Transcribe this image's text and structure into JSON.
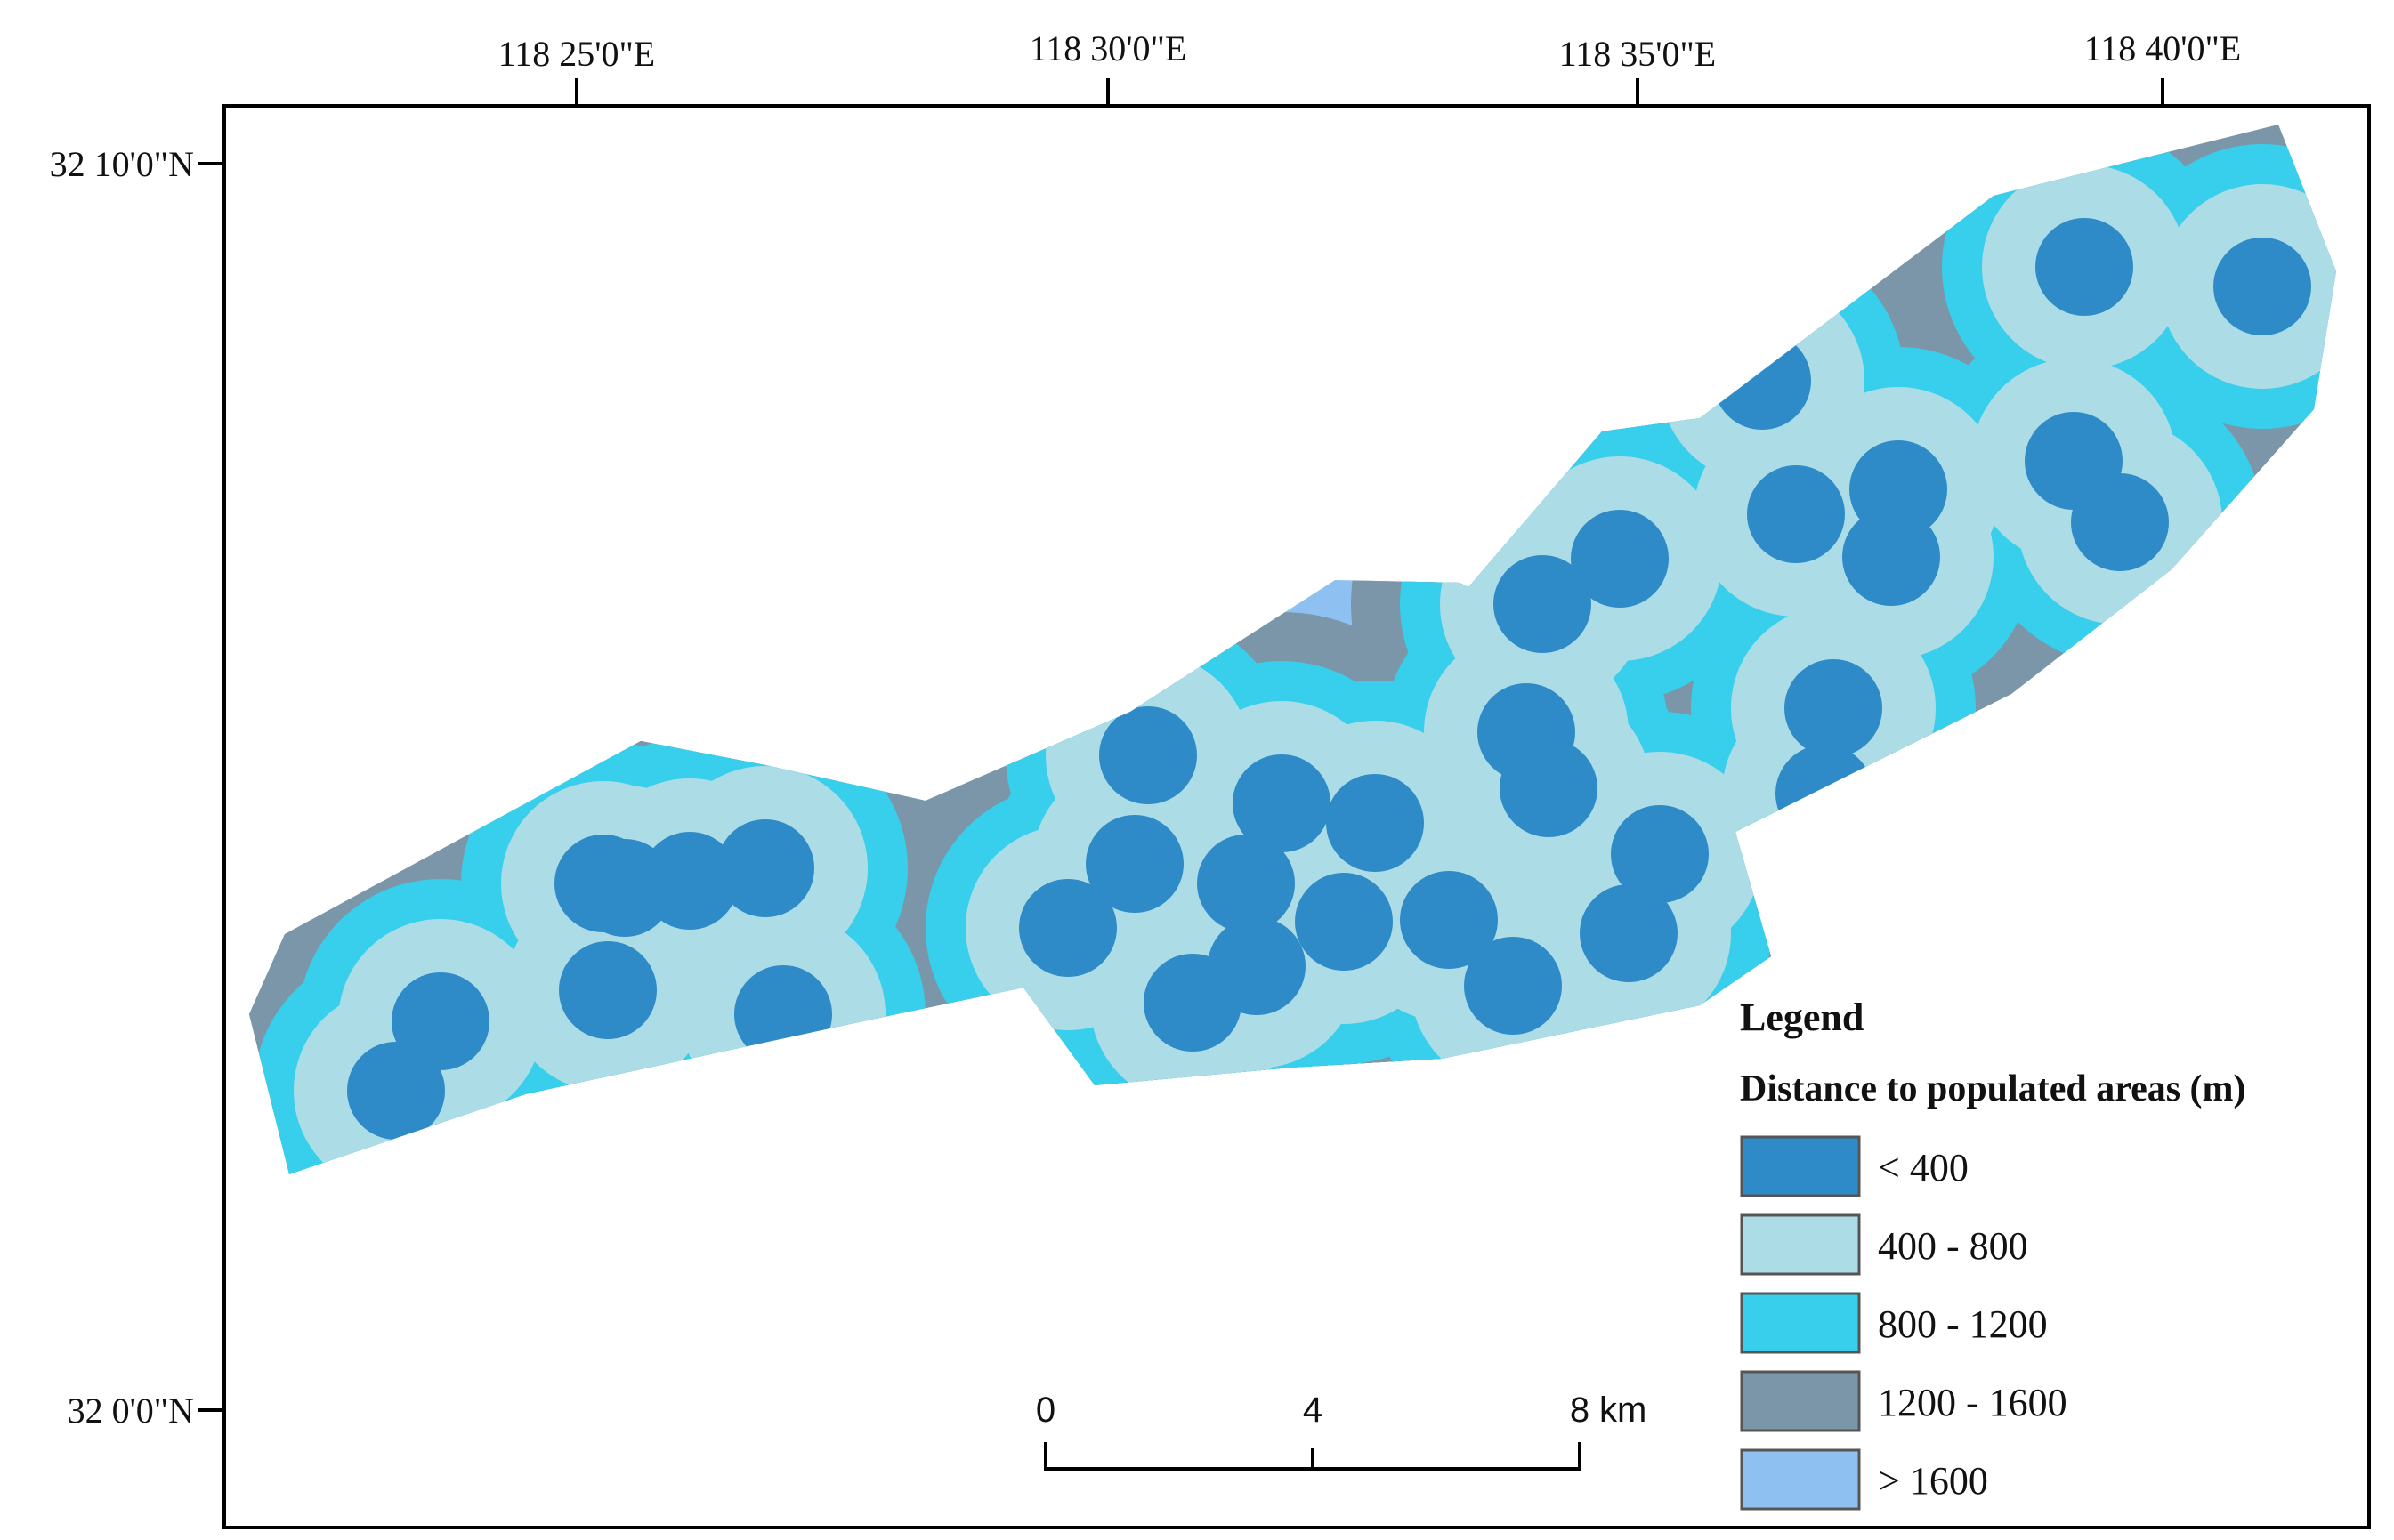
{
  "map": {
    "axes": {
      "longitude_labels": [
        "118  25'0\"E",
        "118  30'0\"E",
        "118  35'0\"E",
        "118  40'0\"E"
      ],
      "latitude_labels": [
        "32  10'0\"N",
        "32  0'0\"N"
      ]
    },
    "legend": {
      "title": "Legend",
      "subtitle": "Distance to populated areas (m)",
      "classes": [
        {
          "label": "< 400",
          "color": "#2e8bc8"
        },
        {
          "label": "400 - 800",
          "color": "#acdce6"
        },
        {
          "label": "800 - 1200",
          "color": "#37cfec"
        },
        {
          "label": "1200 - 1600",
          "color": "#7b96a8"
        },
        {
          "label": "> 1600",
          "color": "#8ec0f2"
        }
      ]
    },
    "scale_bar": {
      "ticks": [
        "0",
        "4",
        "8"
      ],
      "unit": "km"
    },
    "colors": {
      "frame": "#000000",
      "background": "#ffffff"
    }
  }
}
